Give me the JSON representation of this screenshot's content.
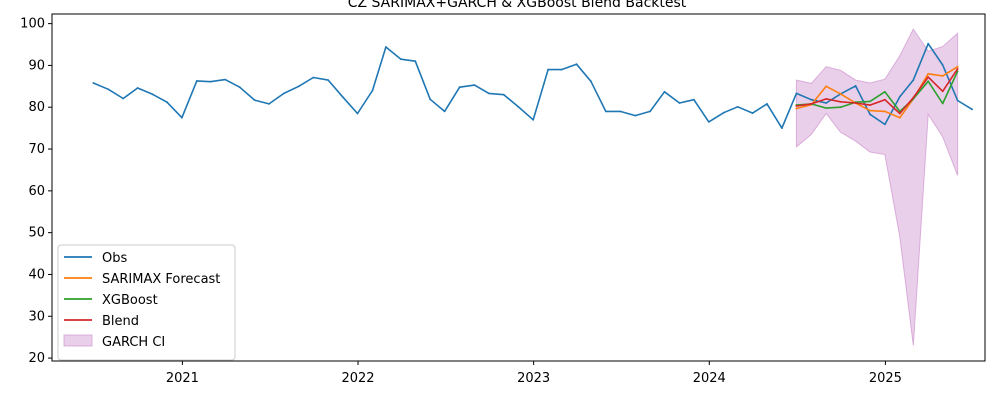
{
  "chart_data": {
    "type": "line",
    "title": "CZ SARIMAX+GARCH & XGBoost Blend Backtest",
    "xlabel": "",
    "ylabel": "",
    "x_range": [
      "2020-04-05",
      "2025-07-27"
    ],
    "ylim": [
      19.3,
      102.3
    ],
    "y_ticks": [
      20,
      30,
      40,
      50,
      60,
      70,
      80,
      90,
      100
    ],
    "x_ticks": [
      {
        "date": "2021-01-01",
        "label": "2021"
      },
      {
        "date": "2022-01-01",
        "label": "2022"
      },
      {
        "date": "2023-01-01",
        "label": "2023"
      },
      {
        "date": "2024-01-01",
        "label": "2024"
      },
      {
        "date": "2025-01-01",
        "label": "2025"
      }
    ],
    "grid": false,
    "legend_position": "lower-left",
    "series": [
      {
        "name": "Obs",
        "color": "#1f77b4",
        "x": [
          "2020-06-30",
          "2020-07-31",
          "2020-08-31",
          "2020-09-30",
          "2020-10-31",
          "2020-11-30",
          "2020-12-31",
          "2021-01-31",
          "2021-02-28",
          "2021-03-31",
          "2021-04-30",
          "2021-05-31",
          "2021-06-30",
          "2021-07-31",
          "2021-08-31",
          "2021-09-30",
          "2021-10-31",
          "2021-11-30",
          "2021-12-31",
          "2022-01-31",
          "2022-02-28",
          "2022-03-31",
          "2022-04-30",
          "2022-05-31",
          "2022-06-30",
          "2022-07-31",
          "2022-08-31",
          "2022-09-30",
          "2022-10-31",
          "2022-11-30",
          "2022-12-31",
          "2023-01-31",
          "2023-02-28",
          "2023-03-31",
          "2023-04-30",
          "2023-05-31",
          "2023-06-30",
          "2023-07-31",
          "2023-08-31",
          "2023-09-30",
          "2023-10-31",
          "2023-11-30",
          "2023-12-31",
          "2024-01-31",
          "2024-02-29",
          "2024-03-31",
          "2024-04-30",
          "2024-05-31",
          "2024-06-30",
          "2024-07-31",
          "2024-08-31",
          "2024-09-30",
          "2024-10-31",
          "2024-11-30",
          "2024-12-31",
          "2025-01-31",
          "2025-02-28",
          "2025-03-31",
          "2025-04-30",
          "2025-05-31",
          "2025-06-30"
        ],
        "values": [
          85.8,
          84.3,
          82.1,
          84.6,
          83.1,
          81.2,
          77.5,
          86.3,
          86.1,
          86.6,
          84.8,
          81.7,
          80.8,
          83.3,
          85.0,
          87.1,
          86.5,
          82.5,
          78.5,
          84.0,
          94.4,
          91.5,
          91.0,
          81.9,
          79.0,
          84.8,
          85.3,
          83.3,
          83.0,
          80.1,
          77.0,
          89.0,
          89.0,
          90.3,
          86.2,
          79.0,
          79.0,
          78.0,
          79.0,
          83.7,
          81.0,
          81.8,
          76.5,
          78.7,
          80.1,
          78.6,
          80.8,
          75.0,
          83.3,
          81.8,
          81.0,
          83.2,
          85.1,
          78.3,
          75.9,
          82.5,
          86.5,
          95.2,
          90.1,
          81.6,
          79.5
        ]
      },
      {
        "name": "SARIMAX Forecast",
        "color": "#ff7f0e",
        "x": [
          "2024-06-30",
          "2024-07-31",
          "2024-08-31",
          "2024-09-30",
          "2024-10-31",
          "2024-11-30",
          "2024-12-31",
          "2025-01-31",
          "2025-02-28",
          "2025-03-31",
          "2025-04-30",
          "2025-05-31",
          "2025-06-30"
        ],
        "values": [
          79.7,
          80.6,
          85.0,
          83.2,
          81.0,
          79.2,
          79.0,
          77.5,
          82.0,
          88.0,
          87.5,
          89.7,
          null
        ]
      },
      {
        "name": "XGBoost",
        "color": "#2ca02c",
        "x": [
          "2024-06-30",
          "2024-07-31",
          "2024-08-31",
          "2024-09-30",
          "2024-10-31",
          "2024-11-30",
          "2024-12-31",
          "2025-01-31",
          "2025-02-28",
          "2025-03-31",
          "2025-04-30",
          "2025-05-31",
          "2025-06-30"
        ],
        "values": [
          80.5,
          80.8,
          79.8,
          80.0,
          81.2,
          81.4,
          83.7,
          79.0,
          82.0,
          86.2,
          80.9,
          88.6,
          null
        ]
      },
      {
        "name": "Blend",
        "color": "#d62728",
        "x": [
          "2024-06-30",
          "2024-07-31",
          "2024-08-31",
          "2024-09-30",
          "2024-10-31",
          "2024-11-30",
          "2024-12-31",
          "2025-01-31",
          "2025-02-28",
          "2025-03-31",
          "2025-04-30",
          "2025-05-31",
          "2025-06-30"
        ],
        "values": [
          80.3,
          80.8,
          82.0,
          81.3,
          81.0,
          80.5,
          81.8,
          78.5,
          82.3,
          87.2,
          83.8,
          89.2,
          null
        ]
      }
    ],
    "band": {
      "name": "GARCH CI",
      "color": "#c987c9",
      "opacity": 0.4,
      "x": [
        "2024-06-30",
        "2024-07-31",
        "2024-08-31",
        "2024-09-30",
        "2024-10-31",
        "2024-11-30",
        "2024-12-31",
        "2025-01-31",
        "2025-02-28",
        "2025-03-31",
        "2025-04-30",
        "2025-05-31"
      ],
      "upper": [
        86.5,
        85.7,
        89.7,
        88.8,
        86.5,
        85.8,
        86.7,
        92.3,
        98.7,
        93.4,
        94.5,
        97.7
      ],
      "lower": [
        70.5,
        73.5,
        78.5,
        74.0,
        71.9,
        69.3,
        68.7,
        49.0,
        23.0,
        78.3,
        72.9,
        63.7
      ]
    }
  }
}
